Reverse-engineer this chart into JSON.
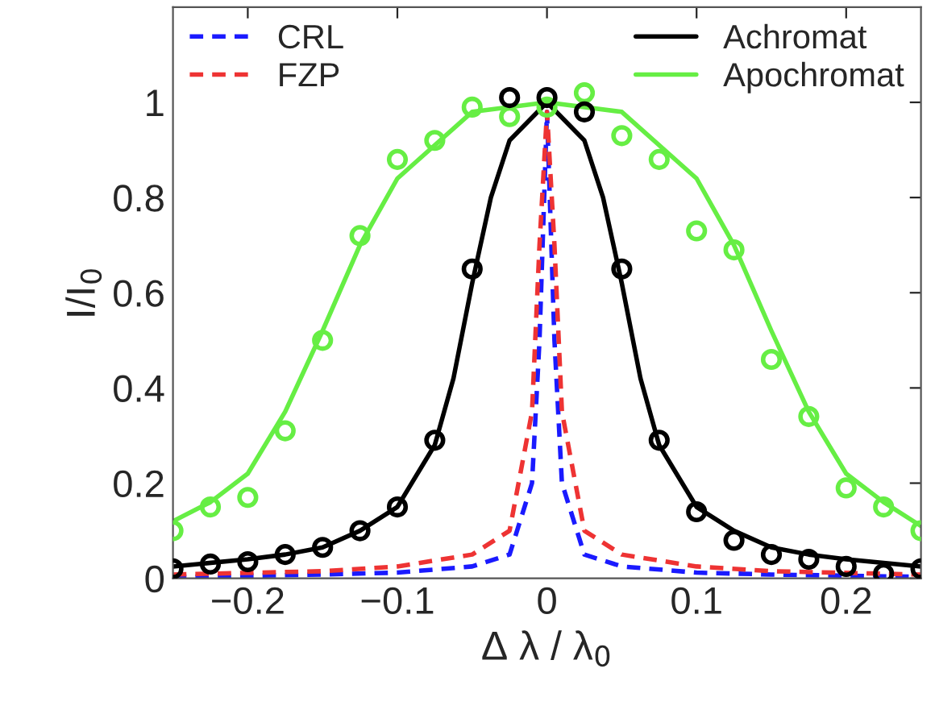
{
  "chart_data": {
    "type": "line",
    "xlabel": "Δ λ / λ$_{0}$",
    "ylabel": "I/I$_{0}$",
    "xlim": [
      -0.25,
      0.25
    ],
    "xticks": [
      -0.2,
      -0.1,
      0,
      0.1,
      0.2
    ],
    "ylim": [
      0,
      1.2
    ],
    "yticks": [
      0,
      0.2,
      0.4,
      0.6,
      0.8,
      1
    ],
    "grid": false,
    "legend": [
      "top left",
      "top right"
    ],
    "series": [
      {
        "name": "CRL",
        "color": "#1a1aff",
        "line_style": "dashed",
        "x": [
          -0.25,
          -0.15,
          -0.1,
          -0.05,
          -0.025,
          -0.01,
          -0.005,
          0,
          0.005,
          0.01,
          0.025,
          0.05,
          0.1,
          0.15,
          0.25
        ],
        "values": [
          0.003,
          0.008,
          0.012,
          0.025,
          0.05,
          0.2,
          0.5,
          0.98,
          0.5,
          0.2,
          0.05,
          0.025,
          0.012,
          0.008,
          0.003
        ]
      },
      {
        "name": "FZP",
        "color": "#ee3333",
        "line_style": "dashed",
        "x": [
          -0.25,
          -0.15,
          -0.1,
          -0.05,
          -0.025,
          -0.01,
          -0.005,
          0,
          0.005,
          0.01,
          0.025,
          0.05,
          0.1,
          0.15,
          0.25
        ],
        "values": [
          0.008,
          0.015,
          0.025,
          0.05,
          0.1,
          0.35,
          0.7,
          0.98,
          0.7,
          0.35,
          0.1,
          0.05,
          0.025,
          0.015,
          0.008
        ]
      },
      {
        "name": "Achromat",
        "color": "#000000",
        "line_style": "solid",
        "x": [
          -0.25,
          -0.2,
          -0.175,
          -0.15,
          -0.125,
          -0.1,
          -0.075,
          -0.0625,
          -0.05,
          -0.0375,
          -0.025,
          0,
          0.025,
          0.0375,
          0.05,
          0.0625,
          0.075,
          0.1,
          0.125,
          0.15,
          0.175,
          0.2,
          0.25
        ],
        "values": [
          0.025,
          0.04,
          0.05,
          0.065,
          0.1,
          0.15,
          0.28,
          0.42,
          0.62,
          0.8,
          0.92,
          1.0,
          0.92,
          0.8,
          0.62,
          0.42,
          0.28,
          0.15,
          0.1,
          0.065,
          0.05,
          0.04,
          0.025
        ]
      },
      {
        "name": "Apochromat",
        "color": "#66ee44",
        "line_style": "solid",
        "x": [
          -0.25,
          -0.225,
          -0.2,
          -0.175,
          -0.15,
          -0.125,
          -0.1,
          -0.05,
          0,
          0.05,
          0.1,
          0.125,
          0.15,
          0.175,
          0.2,
          0.225,
          0.25
        ],
        "values": [
          0.12,
          0.16,
          0.22,
          0.35,
          0.52,
          0.7,
          0.84,
          0.98,
          1.0,
          0.98,
          0.84,
          0.7,
          0.52,
          0.35,
          0.22,
          0.16,
          0.11
        ]
      },
      {
        "type": "scatter",
        "color": "#000000",
        "marker": "circle",
        "x": [
          -0.25,
          -0.225,
          -0.2,
          -0.175,
          -0.15,
          -0.125,
          -0.1,
          -0.075,
          -0.05,
          -0.025,
          0,
          0.025,
          0.05,
          0.075,
          0.1,
          0.125,
          0.15,
          0.175,
          0.2,
          0.225,
          0.25
        ],
        "values": [
          0.02,
          0.03,
          0.035,
          0.05,
          0.065,
          0.1,
          0.15,
          0.29,
          0.65,
          1.01,
          1.01,
          0.98,
          0.65,
          0.29,
          0.14,
          0.08,
          0.05,
          0.04,
          0.025,
          0.01,
          0.02
        ]
      },
      {
        "type": "scatter",
        "color": "#66ee44",
        "marker": "circle",
        "x": [
          -0.25,
          -0.225,
          -0.2,
          -0.175,
          -0.15,
          -0.125,
          -0.1,
          -0.075,
          -0.05,
          -0.025,
          0,
          0.025,
          0.05,
          0.075,
          0.1,
          0.125,
          0.15,
          0.175,
          0.2,
          0.225,
          0.25
        ],
        "values": [
          0.1,
          0.15,
          0.17,
          0.31,
          0.5,
          0.72,
          0.88,
          0.92,
          0.99,
          0.97,
          0.99,
          1.02,
          0.93,
          0.88,
          0.73,
          0.69,
          0.46,
          0.34,
          0.19,
          0.15,
          0.1
        ]
      }
    ]
  }
}
